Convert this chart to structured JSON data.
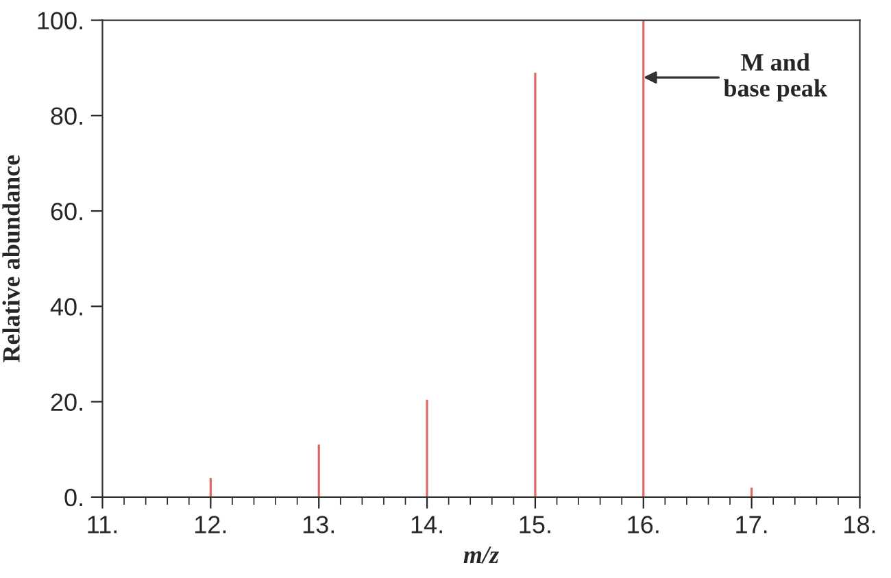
{
  "chart_data": {
    "type": "bar",
    "xlabel": "m/z",
    "ylabel": "Relative abundance",
    "x": [
      12,
      13,
      14,
      15,
      16,
      17
    ],
    "values": [
      4,
      11,
      20.4,
      89,
      100,
      2
    ],
    "color": "#e06666",
    "xlim": [
      11,
      18
    ],
    "ylim": [
      0,
      100
    ],
    "xticks": [
      {
        "value": 11,
        "label": "11."
      },
      {
        "value": 12,
        "label": "12."
      },
      {
        "value": 13,
        "label": "13."
      },
      {
        "value": 14,
        "label": "14."
      },
      {
        "value": 15,
        "label": "15."
      },
      {
        "value": 16,
        "label": "16."
      },
      {
        "value": 17,
        "label": "17."
      },
      {
        "value": 18,
        "label": "18."
      }
    ],
    "yticks": [
      {
        "value": 0,
        "label": "0."
      },
      {
        "value": 20,
        "label": "20."
      },
      {
        "value": 40,
        "label": "40."
      },
      {
        "value": 60,
        "label": "60."
      },
      {
        "value": 80,
        "label": "80."
      },
      {
        "value": 100,
        "label": "100."
      }
    ],
    "annotations": [
      {
        "text": "M and\nbase peak",
        "x": 16,
        "y": 88
      }
    ],
    "grid": false,
    "legend": false
  }
}
